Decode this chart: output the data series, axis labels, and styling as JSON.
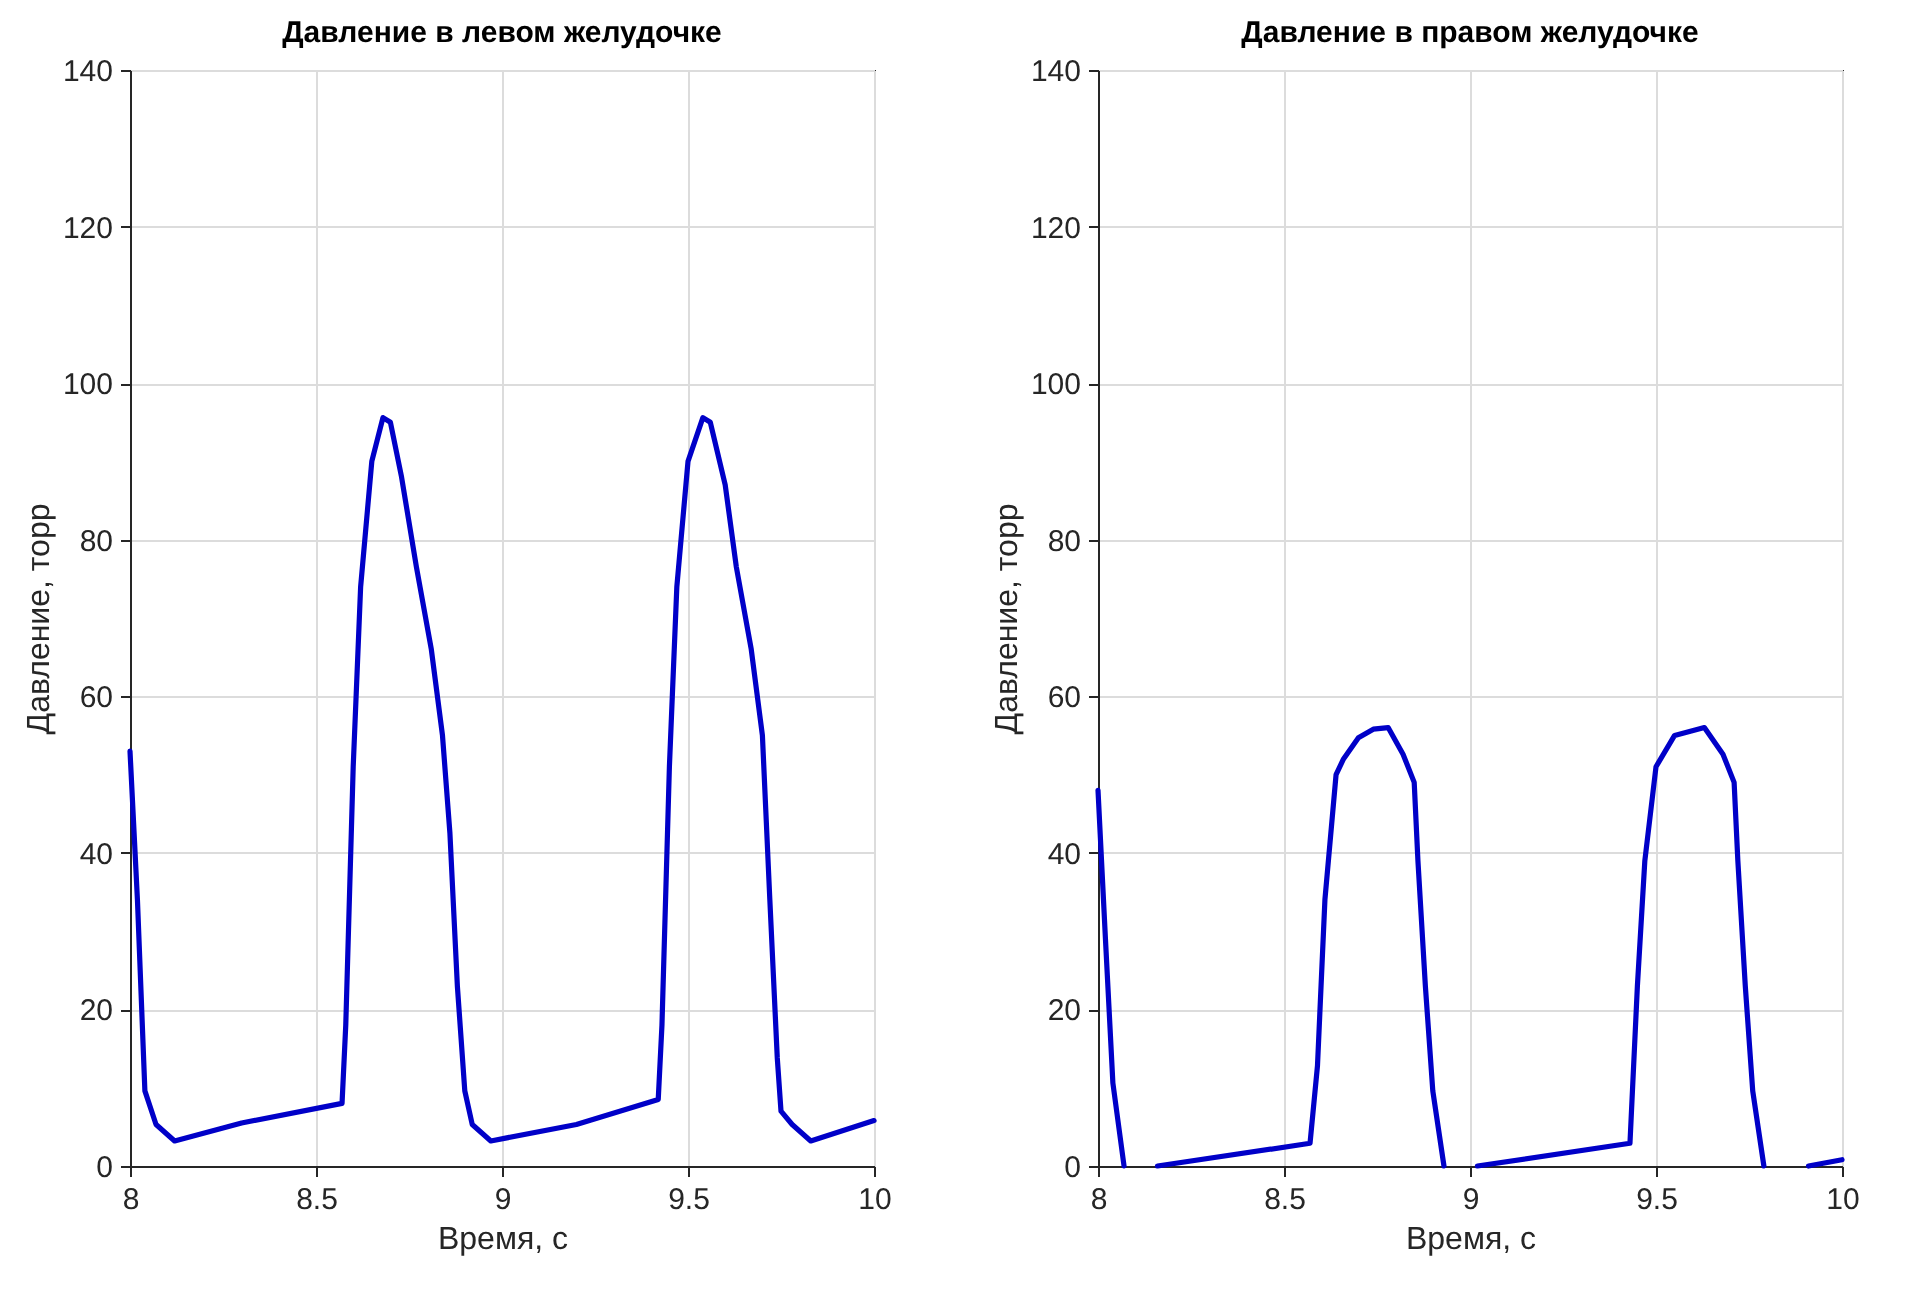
{
  "chart_data": [
    {
      "type": "line",
      "title": "Давление в левом желудочке",
      "xlabel": "Время, с",
      "ylabel": "Давление, торр",
      "xlim": [
        8,
        10
      ],
      "xticks": [
        8,
        8.5,
        9,
        9.5,
        10
      ],
      "ylim": [
        0,
        140
      ],
      "yticks": [
        0,
        20,
        40,
        60,
        80,
        100,
        120,
        140
      ],
      "grid": true,
      "marker": "none",
      "line_style": "solid",
      "series": [
        {
          "color": "#0000c8",
          "x": [
            8.0,
            8.02,
            8.04,
            8.07,
            8.12,
            8.3,
            8.57,
            8.58,
            8.6,
            8.62,
            8.65,
            8.68,
            8.7,
            8.73,
            8.77,
            8.81,
            8.84,
            8.86,
            8.88,
            8.9,
            8.92,
            8.97,
            9.2,
            9.42,
            9.43,
            9.45,
            9.47,
            9.5,
            9.54,
            9.56,
            9.6,
            9.63,
            9.67,
            9.7,
            9.72,
            9.74,
            9.75,
            9.78,
            9.83,
            10.0
          ],
          "values": [
            53,
            34,
            9.6,
            5.3,
            3.2,
            5.5,
            8,
            18,
            51,
            74,
            90,
            95.6,
            95,
            88,
            76.5,
            66,
            55,
            42.5,
            23,
            9.6,
            5.3,
            3.2,
            5.3,
            8.5,
            18,
            51,
            74,
            90,
            95.6,
            95,
            87,
            76.5,
            66,
            55,
            34,
            13.8,
            7,
            5.3,
            3.2,
            5.8
          ]
        }
      ]
    },
    {
      "type": "line",
      "title": "Давление в правом желудочке",
      "xlabel": "Время, с",
      "ylabel": "Давление, торр",
      "xlim": [
        8,
        10
      ],
      "xticks": [
        8,
        8.5,
        9,
        9.5,
        10
      ],
      "ylim": [
        0,
        140
      ],
      "yticks": [
        0,
        20,
        40,
        60,
        80,
        100,
        120,
        140
      ],
      "grid": true,
      "marker": "none",
      "line_style": "solid",
      "series": [
        {
          "color": "#0000c8",
          "x": [
            8.0,
            8.02,
            8.04,
            8.07,
            8.11,
            8.16,
            8.57,
            8.59,
            8.61,
            8.64,
            8.66,
            8.7,
            8.74,
            8.78,
            8.82,
            8.85,
            8.86,
            8.88,
            8.9,
            8.93,
            8.97,
            9.02,
            9.43,
            9.45,
            9.47,
            9.5,
            9.55,
            9.63,
            9.68,
            9.71,
            9.72,
            9.74,
            9.76,
            9.79,
            9.85,
            9.91,
            10.0
          ],
          "values": [
            48,
            29,
            10.6,
            0,
            null,
            0,
            2.9,
            12.8,
            34,
            50,
            52,
            54.7,
            55.8,
            56,
            52.6,
            49,
            39,
            23,
            9.6,
            0,
            null,
            0,
            2.9,
            23,
            39,
            51,
            55,
            56,
            52.6,
            49,
            39,
            23,
            9.6,
            0,
            null,
            0,
            0.8
          ]
        }
      ]
    }
  ]
}
